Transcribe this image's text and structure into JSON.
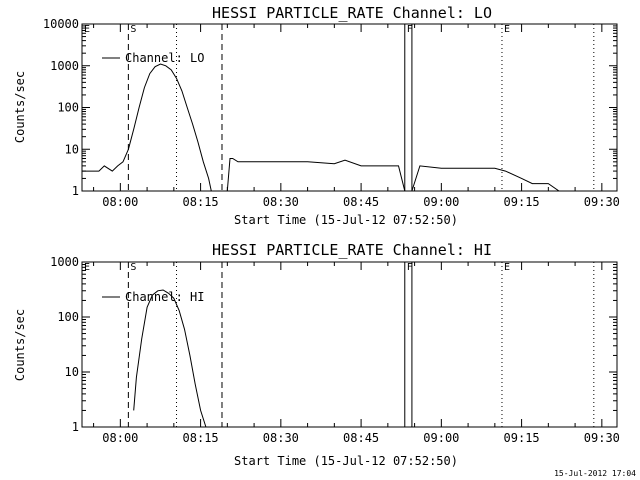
{
  "footer": {
    "timestamp": "15-Jul-2012 17:04"
  },
  "chart_data": [
    {
      "type": "line",
      "title": "HESSI PARTICLE_RATE Channel: LO",
      "xlabel": "Start Time (15-Jul-12 07:52:50)",
      "ylabel": "Counts/sec",
      "yscale": "log",
      "xlim": [
        "07:52:50",
        "09:32:50"
      ],
      "ylim": [
        1,
        10000
      ],
      "xticks": [
        "08:00",
        "08:15",
        "08:30",
        "08:45",
        "09:00",
        "09:15",
        "09:30"
      ],
      "yticks": [
        "1",
        "10",
        "100",
        "1000",
        "10000"
      ],
      "legend": {
        "label": "Channel: LO",
        "placement": "top-left"
      },
      "markers": [
        {
          "label": "E",
          "time": "07:52:50",
          "style": "dotted"
        },
        {
          "label": "S",
          "time": "08:01:30",
          "style": "dashed"
        },
        {
          "label": "",
          "time": "08:10:30",
          "style": "dotted"
        },
        {
          "label": "",
          "time": "08:19:00",
          "style": "dashed"
        },
        {
          "label": "F",
          "time": "08:53:10",
          "style": "solid"
        },
        {
          "label": "",
          "time": "08:54:30",
          "style": "solid"
        },
        {
          "label": "E",
          "time": "09:11:20",
          "style": "dotted"
        },
        {
          "label": "",
          "time": "09:28:30",
          "style": "dotted"
        }
      ],
      "series": [
        {
          "name": "Channel: LO",
          "x": [
            "07:52:50",
            "07:56:00",
            "07:57:00",
            "07:58:30",
            "07:59:30",
            "08:00:30",
            "08:01:30",
            "08:02:30",
            "08:03:30",
            "08:04:30",
            "08:05:30",
            "08:06:30",
            "08:07:30",
            "08:08:30",
            "08:09:30",
            "08:10:30",
            "08:11:30",
            "08:12:30",
            "08:13:30",
            "08:14:30",
            "08:15:30",
            "08:16:30",
            "08:17:00",
            "08:18:00",
            "08:19:00",
            "08:20:00",
            "08:20:30",
            "08:21:00",
            "08:22:00",
            "08:25:00",
            "08:30:00",
            "08:35:00",
            "08:40:00",
            "08:42:00",
            "08:45:00",
            "08:50:00",
            "08:52:00",
            "08:53:10",
            "08:54:30",
            "08:56:00",
            "09:00:00",
            "09:05:00",
            "09:10:00",
            "09:12:00",
            "09:15:00",
            "09:17:00",
            "09:20:00",
            "09:22:00",
            "09:24:00",
            "09:26:00"
          ],
          "values": [
            3,
            3,
            4,
            3,
            4,
            5,
            10,
            30,
            100,
            300,
            650,
            950,
            1100,
            1000,
            800,
            500,
            250,
            100,
            40,
            15,
            5,
            2,
            1,
            1,
            1,
            1,
            6,
            6,
            5,
            5,
            5,
            5,
            4.5,
            5.5,
            4,
            4,
            4,
            1,
            1,
            4,
            3.5,
            3.5,
            3.5,
            3,
            2,
            1.5,
            1.5,
            1,
            1,
            1
          ]
        }
      ]
    },
    {
      "type": "line",
      "title": "HESSI PARTICLE_RATE Channel: HI",
      "xlabel": "Start Time (15-Jul-12 07:52:50)",
      "ylabel": "Counts/sec",
      "yscale": "log",
      "xlim": [
        "07:52:50",
        "09:32:50"
      ],
      "ylim": [
        1,
        1000
      ],
      "xticks": [
        "08:00",
        "08:15",
        "08:30",
        "08:45",
        "09:00",
        "09:15",
        "09:30"
      ],
      "yticks": [
        "1",
        "10",
        "100",
        "1000"
      ],
      "legend": {
        "label": "Channel: HI",
        "placement": "top-left"
      },
      "markers": [
        {
          "label": "E",
          "time": "07:52:50",
          "style": "dotted"
        },
        {
          "label": "S",
          "time": "08:01:30",
          "style": "dashed"
        },
        {
          "label": "",
          "time": "08:10:30",
          "style": "dotted"
        },
        {
          "label": "",
          "time": "08:19:00",
          "style": "dashed"
        },
        {
          "label": "F",
          "time": "08:53:10",
          "style": "solid"
        },
        {
          "label": "",
          "time": "08:54:30",
          "style": "solid"
        },
        {
          "label": "E",
          "time": "09:11:20",
          "style": "dotted"
        },
        {
          "label": "",
          "time": "09:28:30",
          "style": "dotted"
        }
      ],
      "series": [
        {
          "name": "Channel: HI",
          "x": [
            "08:02:30",
            "08:03:00",
            "08:04:00",
            "08:05:00",
            "08:06:00",
            "08:07:00",
            "08:08:00",
            "08:09:00",
            "08:10:00",
            "08:11:00",
            "08:12:00",
            "08:13:00",
            "08:14:00",
            "08:15:00",
            "08:16:00"
          ],
          "values": [
            2,
            8,
            40,
            150,
            250,
            300,
            310,
            270,
            220,
            130,
            60,
            20,
            6,
            2,
            1
          ]
        }
      ]
    }
  ]
}
